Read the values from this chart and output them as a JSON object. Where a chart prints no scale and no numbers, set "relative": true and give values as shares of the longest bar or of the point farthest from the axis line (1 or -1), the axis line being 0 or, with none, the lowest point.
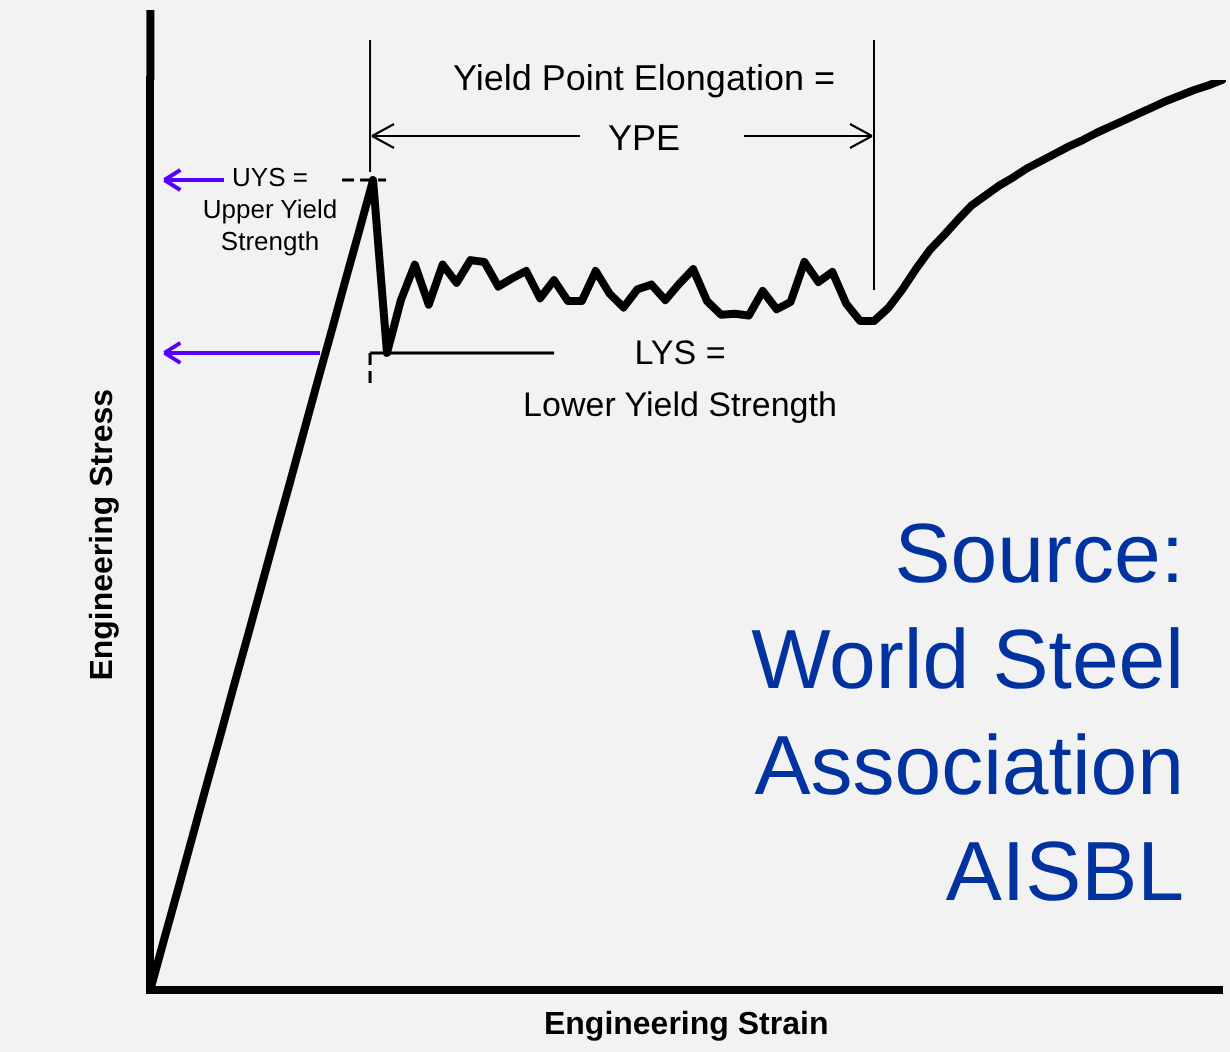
{
  "chart_data": {
    "type": "line",
    "xlabel": "Engineering Strain",
    "ylabel": "Engineering Stress",
    "relative": true,
    "marker": "none",
    "grid": false,
    "categories": [
      null,
      null,
      null,
      null,
      null,
      null,
      null,
      null,
      null,
      null,
      null,
      null,
      null,
      null,
      null,
      null,
      null,
      null,
      null,
      null,
      null,
      null,
      null,
      null,
      null,
      null,
      null,
      null,
      null,
      null,
      null,
      null,
      null,
      null,
      null,
      null,
      null,
      null,
      null,
      null,
      null,
      null,
      null,
      null,
      null,
      null,
      null,
      null,
      null,
      null,
      null,
      null,
      null,
      null,
      null,
      null,
      null,
      null,
      null,
      null,
      null,
      null,
      null,
      null,
      null,
      null,
      null,
      null,
      null,
      null,
      null,
      null,
      null,
      null,
      null,
      null,
      null,
      null
    ],
    "series": [
      {
        "color": "#000000",
        "values": [
          0,
          0.056,
          0.111,
          0.167,
          0.223,
          0.278,
          0.334,
          0.389,
          0.445,
          0.501,
          0.556,
          0.612,
          0.668,
          0.723,
          0.779,
          0.834,
          0.89,
          0.7,
          0.758,
          0.797,
          0.753,
          0.797,
          0.777,
          0.802,
          0.8,
          0.773,
          0.782,
          0.79,
          0.76,
          0.78,
          0.757,
          0.757,
          0.79,
          0.765,
          0.75,
          0.77,
          0.775,
          0.758,
          0.776,
          0.792,
          0.757,
          0.742,
          0.743,
          0.741,
          0.768,
          0.748,
          0.756,
          0.8,
          0.778,
          0.789,
          0.754,
          0.735,
          0.735,
          0.749,
          0.769,
          0.792,
          0.813,
          0.829,
          0.846,
          0.862,
          0.873,
          0.884,
          0.893,
          0.903,
          0.911,
          0.919,
          0.927,
          0.934,
          0.942,
          0.949,
          0.956,
          0.963,
          0.97,
          0.977,
          0.983,
          0.989,
          0.994,
          1.0
        ]
      }
    ],
    "annotations": [
      "UYS = Upper Yield Strength",
      "LYS = Lower Yield Strength",
      "Yield Point Elongation = YPE",
      "Source: World Steel Association AISBL"
    ]
  }
}
